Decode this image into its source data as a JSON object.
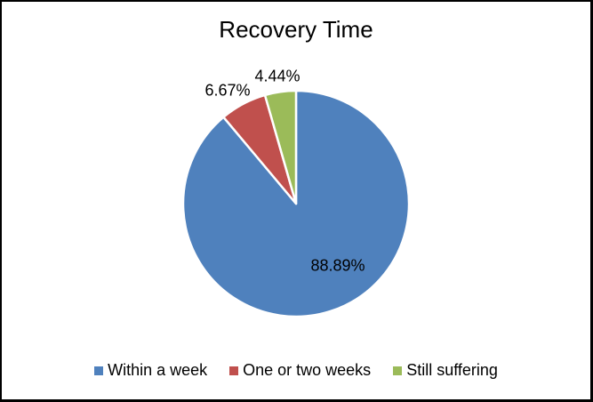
{
  "chart_data": {
    "type": "pie",
    "title": "Recovery Time",
    "categories": [
      "Within a week",
      "One or two weeks",
      "Still suffering"
    ],
    "values": [
      88.89,
      6.67,
      4.44
    ],
    "slices": [
      {
        "label": "Within a week",
        "value": 88.89,
        "pct_label": "88.89%",
        "color": "#4F81BD",
        "label_position": "inside"
      },
      {
        "label": "One or two weeks",
        "value": 6.67,
        "pct_label": "6.67%",
        "color": "#C0504D",
        "label_position": "outside"
      },
      {
        "label": "Still suffering",
        "value": 4.44,
        "pct_label": "4.44%",
        "color": "#9BBB59",
        "label_position": "outside"
      }
    ],
    "start_angle_deg": 0,
    "direction": "clockwise",
    "slice_border_color": "#FFFFFF",
    "legend_position": "bottom",
    "background_color": "#FFFFFF",
    "frame_color": "#000000"
  }
}
